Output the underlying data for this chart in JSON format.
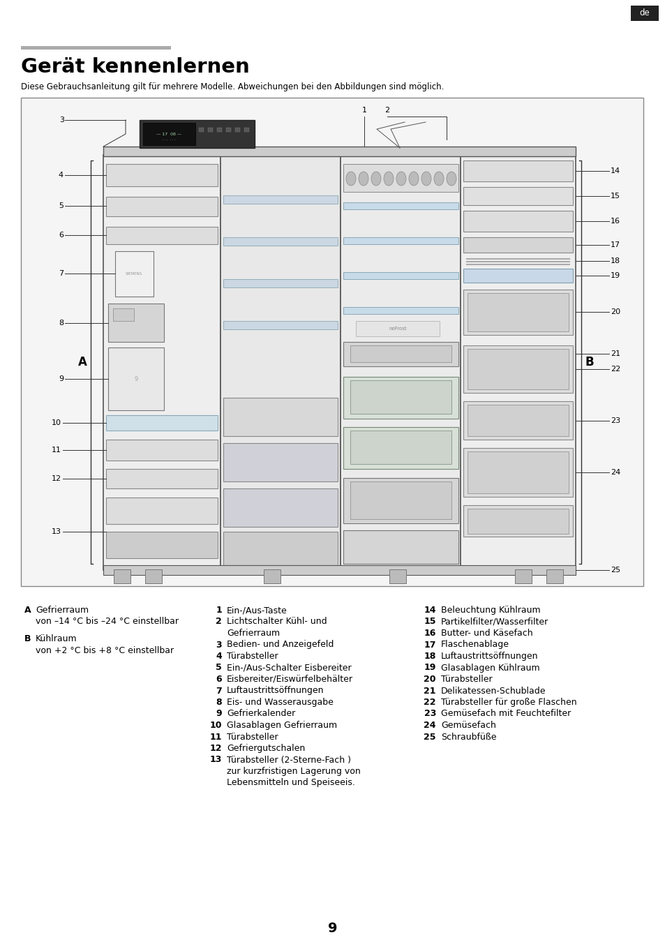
{
  "page_title": "Gerät kennenlernen",
  "subtitle": "Diese Gebrauchsanleitung gilt für mehrere Modelle. Abweichungen bei den Abbildungen sind möglich.",
  "page_number": "9",
  "lang_badge": "de",
  "top_bar_color": "#aaaaaa",
  "section_A_label": "A",
  "section_B_label": "B",
  "section_A_title": "Gefrierraum",
  "section_A_sub": "von –14 °C bis –24 °C einstellbar",
  "section_B_title": "Kühlraum",
  "section_B_sub": "von +2 °C bis +8 °C einstellbar",
  "col2_items": [
    [
      "1",
      "Ein-/Aus-Taste"
    ],
    [
      "2",
      "Lichtschalter Kühl- und\nGefrierraum"
    ],
    [
      "3",
      "Bedien- und Anzeigefeld"
    ],
    [
      "4",
      "Türabsteller"
    ],
    [
      "5",
      "Ein-/Aus-Schalter Eisbereiter"
    ],
    [
      "6",
      "Eisbereiter/Eiswürfelbehälter"
    ],
    [
      "7",
      "Luftaustrittsöffnungen"
    ],
    [
      "8",
      "Eis- und Wasserausgabe"
    ],
    [
      "9",
      "Gefrierkalender"
    ],
    [
      "10",
      "Glasablagen Gefrierraum"
    ],
    [
      "11",
      "Türabsteller"
    ],
    [
      "12",
      "Gefriergutschalen"
    ],
    [
      "13",
      "Türabsteller (2-Sterne-Fach )\nzur kurzfristigen Lagerung von\nLebensmitteln und Speiseeis."
    ]
  ],
  "col3_items": [
    [
      "14",
      "Beleuchtung Kühlraum"
    ],
    [
      "15",
      "Partikelfilter/Wasserfilter"
    ],
    [
      "16",
      "Butter- und Käsefach"
    ],
    [
      "17",
      "Flaschenablage"
    ],
    [
      "18",
      "Luftaustrittsöffnungen"
    ],
    [
      "19",
      "Glasablagen Kühlraum"
    ],
    [
      "20",
      "Türabsteller"
    ],
    [
      "21",
      "Delikatessen-Schublade"
    ],
    [
      "22",
      "Türabsteller für große Flaschen"
    ],
    [
      "23",
      "Gemüsefach mit Feuchtefilter"
    ],
    [
      "24",
      "Gemüsefach"
    ],
    [
      "25",
      "Schraubfüße"
    ]
  ],
  "bg_color": "#ffffff",
  "text_color": "#000000",
  "badge_bg": "#222222",
  "badge_text": "#ffffff",
  "diagram_border": "#444444",
  "fridge_line": "#555555",
  "shelf_fill": "#e0e0e0",
  "shelf_edge": "#888888",
  "drawer_fill": "#d8d8d8",
  "inner_fill": "#c8c8c8"
}
